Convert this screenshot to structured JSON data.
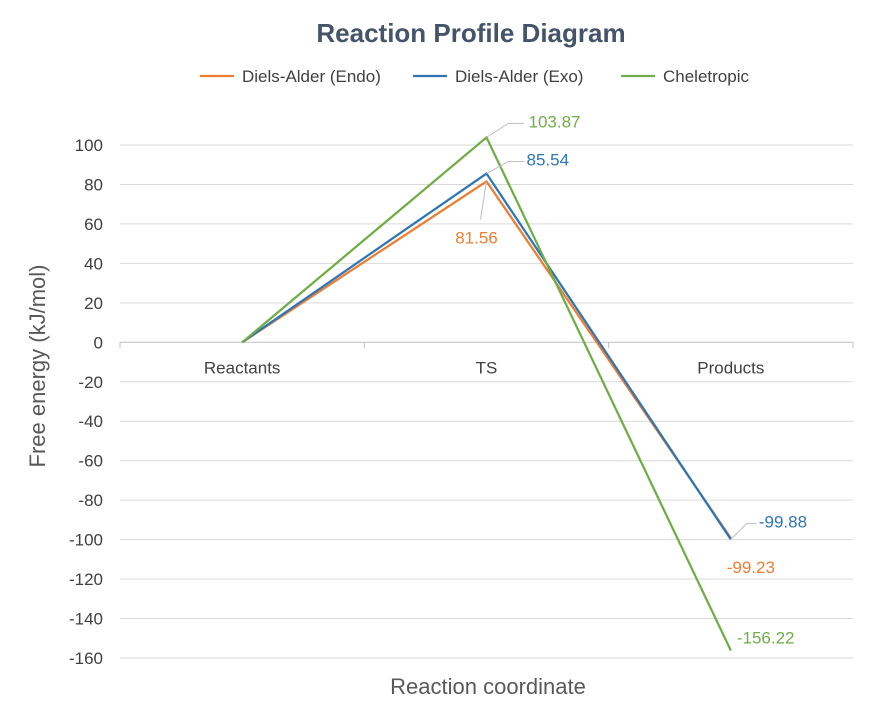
{
  "chart_data": {
    "type": "line",
    "title": "Reaction Profile Diagram",
    "xlabel": "Reaction coordinate",
    "ylabel": "Free energy (kJ/mol)",
    "categories": [
      "Reactants",
      "TS",
      "Products"
    ],
    "ylim": [
      -160,
      100
    ],
    "ytick_step": 20,
    "grid": true,
    "legend_position": "top",
    "series": [
      {
        "name": "Diels-Alder (Endo)",
        "color": "#ed7d31",
        "values": [
          0,
          81.56,
          -99.23
        ],
        "labels": [
          "",
          "81.56",
          "-99.23"
        ]
      },
      {
        "name": "Diels-Alder (Exo)",
        "color": "#2e75b6",
        "values": [
          0,
          85.54,
          -99.88
        ],
        "labels": [
          "",
          "85.54",
          "-99.88"
        ]
      },
      {
        "name": "Cheletropic",
        "color": "#70ad47",
        "values": [
          0,
          103.87,
          -156.22
        ],
        "labels": [
          "",
          "103.87",
          "-156.22"
        ]
      }
    ]
  }
}
